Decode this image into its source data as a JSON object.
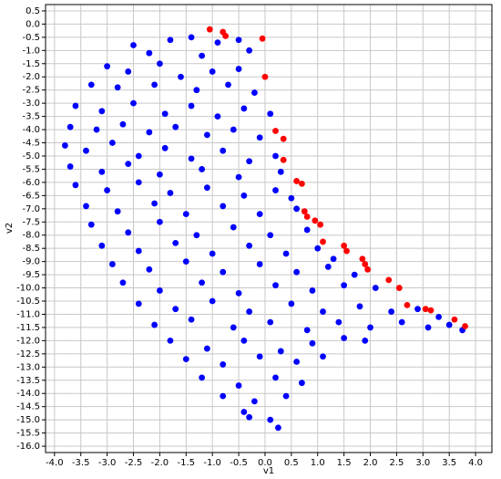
{
  "chart_data": {
    "type": "scatter",
    "xlabel": "v1",
    "ylabel": "v2",
    "xlim": [
      -4.17,
      4.31
    ],
    "ylim": [
      -16.24,
      0.74
    ],
    "grid": true,
    "xticks": [
      {
        "value": -4,
        "label": "-4.0"
      },
      -3.5,
      {
        "value": -3,
        "label": "-3.0"
      },
      -2.5,
      {
        "value": -2,
        "label": "-2.0"
      },
      -1.5,
      {
        "value": -1,
        "label": "-1.0"
      },
      -0.5,
      {
        "value": 0,
        "label": "0.0"
      },
      0.5,
      {
        "value": 1,
        "label": "1.0"
      },
      1.5,
      {
        "value": 2,
        "label": "2.0"
      },
      2.5,
      {
        "value": 3,
        "label": "3.0"
      },
      3.5,
      {
        "value": 4,
        "label": "4.0"
      }
    ],
    "yticks": [
      0.5,
      {
        "value": 0,
        "label": "0.0"
      },
      -0.5,
      {
        "value": -1,
        "label": "-1.0"
      },
      -1.5,
      {
        "value": -2,
        "label": "-2.0"
      },
      -2.5,
      {
        "value": -3,
        "label": "-3.0"
      },
      -3.5,
      {
        "value": -4,
        "label": "-4.0"
      },
      -4.5,
      {
        "value": -5,
        "label": "-5.0"
      },
      -5.5,
      {
        "value": -6,
        "label": "-6.0"
      },
      -6.5,
      {
        "value": -7,
        "label": "-7.0"
      },
      -7.5,
      {
        "value": -8,
        "label": "-8.0"
      },
      -8.5,
      {
        "value": -9,
        "label": "-9.0"
      },
      -9.5,
      {
        "value": -10,
        "label": "-10.0"
      },
      -10.5,
      {
        "value": -11,
        "label": "-11.0"
      },
      -11.5,
      {
        "value": -12,
        "label": "-12.0"
      },
      -12.5,
      {
        "value": -13,
        "label": "-13.0"
      },
      -13.5,
      {
        "value": -14,
        "label": "-14.0"
      },
      -14.5,
      {
        "value": -15,
        "label": "-15.0"
      },
      -15.5,
      {
        "value": -16,
        "label": "-16.0"
      }
    ],
    "series": [
      {
        "color": "#0000ff",
        "x": [
          -1.8,
          -1.4,
          -0.9,
          -0.5,
          -2.5,
          -2.2,
          -1.2,
          -0.3,
          -3.0,
          -2.6,
          -2.0,
          -1.6,
          -1.0,
          -0.5,
          -3.3,
          -2.8,
          -2.1,
          -1.3,
          -0.7,
          -0.2,
          -3.6,
          -3.1,
          -2.5,
          -1.9,
          -1.4,
          -0.9,
          -0.4,
          0.1,
          -3.7,
          -3.2,
          -2.7,
          -2.2,
          -1.7,
          -1.1,
          -0.6,
          -0.1,
          -3.8,
          -3.4,
          -2.9,
          -2.4,
          -1.9,
          -1.4,
          -0.8,
          -0.3,
          0.2,
          -3.7,
          -3.1,
          -2.6,
          -2.0,
          -1.2,
          -0.5,
          0.3,
          -3.6,
          -3.0,
          -2.4,
          -1.8,
          -1.1,
          -0.4,
          0.2,
          0.5,
          -3.4,
          -2.8,
          -2.1,
          -1.5,
          -0.8,
          -0.1,
          0.6,
          -3.3,
          -2.6,
          -2.0,
          -1.3,
          -0.6,
          0.1,
          0.8,
          -3.1,
          -2.4,
          -1.7,
          -1.0,
          -0.3,
          0.4,
          1.0,
          1.3,
          -2.9,
          -2.2,
          -1.5,
          -0.8,
          -0.1,
          0.6,
          1.2,
          1.7,
          -2.7,
          -2.0,
          -1.2,
          -0.5,
          0.2,
          0.9,
          1.5,
          2.1,
          -2.4,
          -1.7,
          -1.0,
          -0.3,
          0.5,
          1.1,
          1.8,
          2.4,
          2.9,
          3.3,
          -2.1,
          -1.4,
          -0.6,
          0.1,
          0.8,
          1.4,
          2.0,
          2.6,
          3.1,
          3.5,
          3.75,
          -1.8,
          -1.1,
          -0.4,
          0.3,
          0.9,
          1.5,
          1.9,
          -1.5,
          -0.8,
          -0.1,
          0.6,
          1.1,
          -1.2,
          -0.5,
          0.2,
          0.7,
          -0.8,
          -0.2,
          0.4,
          -0.4,
          0.1,
          0.25,
          -0.3
        ],
        "values": [
          -0.6,
          -0.5,
          -0.7,
          -0.6,
          -0.8,
          -1.1,
          -1.2,
          -1.0,
          -1.6,
          -1.8,
          -1.5,
          -2.0,
          -1.8,
          -1.7,
          -2.3,
          -2.4,
          -2.3,
          -2.5,
          -2.3,
          -2.6,
          -3.1,
          -3.3,
          -3.0,
          -3.4,
          -3.1,
          -3.5,
          -3.2,
          -3.4,
          -3.9,
          -4.0,
          -3.8,
          -4.1,
          -3.9,
          -4.2,
          -4.0,
          -4.3,
          -4.6,
          -4.8,
          -4.5,
          -5.0,
          -4.7,
          -5.1,
          -4.8,
          -5.2,
          -5.0,
          -5.4,
          -5.6,
          -5.3,
          -5.7,
          -5.5,
          -5.8,
          -5.6,
          -6.1,
          -6.3,
          -6.0,
          -6.4,
          -6.2,
          -6.5,
          -6.3,
          -6.6,
          -6.9,
          -7.1,
          -6.8,
          -7.2,
          -6.9,
          -7.2,
          -7.0,
          -7.6,
          -7.9,
          -7.5,
          -8.0,
          -7.7,
          -8.0,
          -7.8,
          -8.4,
          -8.6,
          -8.3,
          -8.7,
          -8.4,
          -8.7,
          -8.5,
          -8.9,
          -9.1,
          -9.3,
          -9.0,
          -9.4,
          -9.1,
          -9.4,
          -9.2,
          -9.5,
          -9.8,
          -10.1,
          -9.8,
          -10.2,
          -9.9,
          -10.1,
          -9.9,
          -10.0,
          -10.6,
          -10.8,
          -10.5,
          -10.9,
          -10.6,
          -10.9,
          -10.7,
          -10.9,
          -10.8,
          -11.1,
          -11.4,
          -11.2,
          -11.5,
          -11.3,
          -11.6,
          -11.3,
          -11.5,
          -11.3,
          -11.5,
          -11.4,
          -11.6,
          -12.0,
          -12.3,
          -12.0,
          -12.4,
          -12.1,
          -11.9,
          -12.0,
          -12.7,
          -12.9,
          -12.6,
          -12.8,
          -12.6,
          -13.4,
          -13.7,
          -13.4,
          -13.6,
          -14.1,
          -14.3,
          -14.1,
          -14.7,
          -15.0,
          -15.3,
          -14.9
        ]
      },
      {
        "color": "#ff0000",
        "x": [
          -1.05,
          -0.8,
          -0.75,
          -0.05,
          0,
          0.2,
          0.35,
          0.35,
          0.6,
          0.7,
          0.75,
          0.8,
          0.95,
          1.05,
          1.1,
          1.5,
          1.55,
          1.85,
          1.9,
          1.95,
          2.35,
          2.55,
          2.7,
          3.05,
          3.15,
          3.6,
          3.8
        ],
        "values": [
          -0.2,
          -0.3,
          -0.45,
          -0.55,
          -2.0,
          -4.05,
          -4.35,
          -5.15,
          -5.95,
          -6.05,
          -7.1,
          -7.3,
          -7.45,
          -7.6,
          -8.25,
          -8.4,
          -8.6,
          -8.9,
          -9.1,
          -9.3,
          -9.7,
          -10.0,
          -10.65,
          -10.8,
          -10.85,
          -11.2,
          -11.45
        ]
      }
    ]
  }
}
